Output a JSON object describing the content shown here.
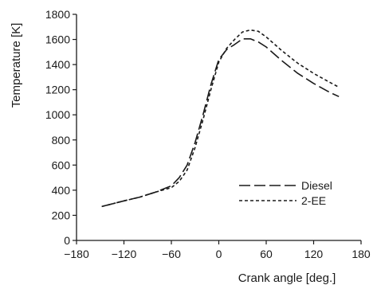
{
  "chart_data": {
    "type": "line",
    "xlabel": "Crank angle [deg.]",
    "ylabel": "Temperature [K]",
    "xlim": [
      -180,
      180
    ],
    "ylim": [
      0,
      1800
    ],
    "xticks": [
      -180,
      -120,
      -60,
      0,
      60,
      120,
      180
    ],
    "yticks": [
      0,
      200,
      400,
      600,
      800,
      1000,
      1200,
      1400,
      1600,
      1800
    ],
    "xtick_labels": [
      "−180",
      "−120",
      "−60",
      "0",
      "60",
      "120",
      "180"
    ],
    "ytick_labels": [
      "0",
      "200",
      "400",
      "600",
      "800",
      "1000",
      "1200",
      "1400",
      "1600",
      "1800"
    ],
    "grid": false,
    "legend_position": "right-middle",
    "series": [
      {
        "name": "Diesel",
        "style": "long-dash",
        "color": "#1a1a1a",
        "x": [
          -148,
          -120,
          -100,
          -80,
          -60,
          -50,
          -40,
          -30,
          -20,
          -10,
          0,
          10,
          20,
          30,
          40,
          50,
          60,
          80,
          100,
          120,
          140,
          152
        ],
        "y": [
          270,
          315,
          345,
          385,
          435,
          500,
          600,
          780,
          1000,
          1240,
          1440,
          1520,
          1560,
          1605,
          1605,
          1580,
          1540,
          1430,
          1330,
          1250,
          1180,
          1145
        ]
      },
      {
        "name": "2-EE",
        "style": "short-dash",
        "color": "#1a1a1a",
        "x": [
          -148,
          -120,
          -100,
          -80,
          -60,
          -50,
          -40,
          -30,
          -20,
          -10,
          0,
          10,
          20,
          30,
          40,
          50,
          60,
          80,
          100,
          120,
          140,
          152
        ],
        "y": [
          270,
          315,
          345,
          385,
          420,
          470,
          560,
          740,
          960,
          1200,
          1420,
          1530,
          1600,
          1660,
          1675,
          1665,
          1620,
          1510,
          1410,
          1330,
          1260,
          1220
        ]
      }
    ]
  }
}
